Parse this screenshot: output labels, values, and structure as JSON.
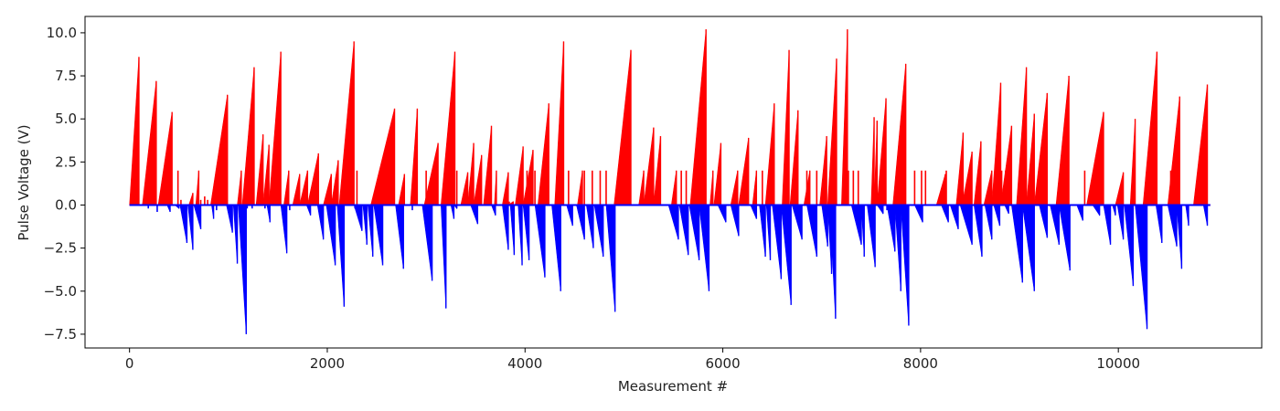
{
  "chart_data": {
    "type": "bar",
    "title": "",
    "xlabel": "Measurement #",
    "ylabel": "Pulse Voltage (V)",
    "xlim": [
      -450,
      11450
    ],
    "ylim": [
      -8.3,
      10.95
    ],
    "x_ticks": [
      0,
      2000,
      4000,
      6000,
      8000,
      10000
    ],
    "y_ticks": [
      -7.5,
      -5.0,
      -2.5,
      0.0,
      2.5,
      5.0,
      7.5,
      10.0
    ],
    "y_tick_labels": [
      "−7.5",
      "−5.0",
      "−2.5",
      "0.0",
      "2.5",
      "5.0",
      "7.5",
      "10.0"
    ],
    "x_tick_labels": [
      "0",
      "2000",
      "4000",
      "6000",
      "8000",
      "10000"
    ],
    "grid": false,
    "series": [
      {
        "color": "#ff0000",
        "sign": "positive",
        "ramps": [
          [
            0,
            95,
            8.6
          ],
          [
            130,
            270,
            7.2
          ],
          [
            290,
            430,
            5.4
          ],
          [
            600,
            640,
            0.7
          ],
          [
            670,
            700,
            2.0
          ],
          [
            820,
            990,
            6.4
          ],
          [
            1090,
            1130,
            2.0
          ],
          [
            1140,
            1260,
            8.0
          ],
          [
            1280,
            1350,
            4.1
          ],
          [
            1350,
            1410,
            3.5
          ],
          [
            1410,
            1530,
            8.9
          ],
          [
            1560,
            1610,
            2.0
          ],
          [
            1650,
            1720,
            1.8
          ],
          [
            1720,
            1800,
            2.0
          ],
          [
            1800,
            1910,
            3.0
          ],
          [
            1960,
            2040,
            1.8
          ],
          [
            2040,
            2110,
            2.6
          ],
          [
            2120,
            2270,
            9.5
          ],
          [
            2440,
            2680,
            5.6
          ],
          [
            2720,
            2780,
            1.8
          ],
          [
            2840,
            2910,
            5.6
          ],
          [
            2980,
            3120,
            3.6
          ],
          [
            3150,
            3290,
            8.9
          ],
          [
            3350,
            3420,
            1.9
          ],
          [
            3420,
            3480,
            3.6
          ],
          [
            3480,
            3560,
            2.9
          ],
          [
            3580,
            3660,
            4.6
          ],
          [
            3690,
            3710,
            2.0
          ],
          [
            3770,
            3830,
            1.9
          ],
          [
            3830,
            3880,
            0.2
          ],
          [
            3900,
            3980,
            3.4
          ],
          [
            3980,
            4080,
            3.2
          ],
          [
            4130,
            4240,
            5.9
          ],
          [
            4300,
            4390,
            9.5
          ],
          [
            4530,
            4580,
            2.0
          ],
          [
            4900,
            5070,
            9.0
          ],
          [
            5150,
            5200,
            2.0
          ],
          [
            5200,
            5300,
            4.5
          ],
          [
            5300,
            5370,
            4.0
          ],
          [
            5480,
            5530,
            2.0
          ],
          [
            5670,
            5830,
            10.2
          ],
          [
            5870,
            5900,
            2.0
          ],
          [
            5910,
            5980,
            3.6
          ],
          [
            6080,
            6150,
            2.0
          ],
          [
            6160,
            6260,
            3.9
          ],
          [
            6300,
            6340,
            2.0
          ],
          [
            6430,
            6520,
            5.9
          ],
          [
            6600,
            6670,
            9.0
          ],
          [
            6680,
            6760,
            5.5
          ],
          [
            6820,
            6880,
            2.0
          ],
          [
            6980,
            7050,
            4.0
          ],
          [
            7060,
            7150,
            8.5
          ],
          [
            7200,
            7260,
            10.2
          ],
          [
            7500,
            7530,
            5.1
          ],
          [
            7530,
            7560,
            4.9
          ],
          [
            7560,
            7650,
            6.2
          ],
          [
            7720,
            7850,
            8.2
          ],
          [
            8160,
            8250,
            1.8
          ],
          [
            8360,
            8430,
            4.2
          ],
          [
            8420,
            8520,
            3.1
          ],
          [
            8540,
            8610,
            3.7
          ],
          [
            8640,
            8720,
            2.0
          ],
          [
            8720,
            8810,
            7.1
          ],
          [
            8810,
            8920,
            4.6
          ],
          [
            8970,
            9070,
            8.0
          ],
          [
            9070,
            9150,
            5.3
          ],
          [
            9150,
            9280,
            6.5
          ],
          [
            9370,
            9500,
            7.5
          ],
          [
            9680,
            9850,
            5.4
          ],
          [
            9970,
            10050,
            1.9
          ],
          [
            10120,
            10170,
            5.0
          ],
          [
            10250,
            10390,
            8.9
          ],
          [
            10500,
            10620,
            6.3
          ],
          [
            10760,
            10900,
            7.0
          ]
        ],
        "spikes": [
          [
            490,
            2.0
          ],
          [
            520,
            0.3
          ],
          [
            720,
            0.3
          ],
          [
            760,
            0.5
          ],
          [
            790,
            0.3
          ],
          [
            1210,
            2.0
          ],
          [
            1860,
            1.0
          ],
          [
            1910,
            2.0
          ],
          [
            2300,
            2.0
          ],
          [
            2560,
            2.0
          ],
          [
            3000,
            2.0
          ],
          [
            3310,
            2.0
          ],
          [
            3840,
            0.2
          ],
          [
            4020,
            2.0
          ],
          [
            4100,
            2.0
          ],
          [
            4440,
            2.0
          ],
          [
            4600,
            2.0
          ],
          [
            4680,
            2.0
          ],
          [
            4760,
            2.0
          ],
          [
            4820,
            2.0
          ],
          [
            5580,
            2.0
          ],
          [
            5630,
            2.0
          ],
          [
            6400,
            2.0
          ],
          [
            6850,
            2.0
          ],
          [
            6950,
            2.0
          ],
          [
            7270,
            2.0
          ],
          [
            7320,
            2.0
          ],
          [
            7370,
            2.0
          ],
          [
            7940,
            2.0
          ],
          [
            8010,
            2.0
          ],
          [
            8050,
            2.0
          ],
          [
            8260,
            2.0
          ],
          [
            8820,
            2.0
          ],
          [
            8860,
            2.0
          ],
          [
            9480,
            2.0
          ],
          [
            9660,
            2.0
          ],
          [
            10530,
            2.0
          ]
        ]
      },
      {
        "color": "#0000ff",
        "sign": "negative",
        "ramps": [
          [
            380,
            410,
            -0.4
          ],
          [
            460,
            500,
            -0.2
          ],
          [
            510,
            580,
            -2.2
          ],
          [
            590,
            640,
            -2.6
          ],
          [
            650,
            720,
            -1.4
          ],
          [
            830,
            850,
            -0.8
          ],
          [
            980,
            1040,
            -1.6
          ],
          [
            1050,
            1090,
            -3.4
          ],
          [
            1100,
            1180,
            -7.5
          ],
          [
            1390,
            1420,
            -1.0
          ],
          [
            1530,
            1590,
            -2.8
          ],
          [
            1790,
            1830,
            -0.6
          ],
          [
            1900,
            1960,
            -2.0
          ],
          [
            1990,
            2080,
            -3.5
          ],
          [
            2100,
            2170,
            -5.9
          ],
          [
            2270,
            2350,
            -1.5
          ],
          [
            2360,
            2400,
            -2.3
          ],
          [
            2410,
            2460,
            -3.0
          ],
          [
            2470,
            2560,
            -3.5
          ],
          [
            2690,
            2770,
            -3.7
          ],
          [
            2960,
            3060,
            -4.4
          ],
          [
            3150,
            3200,
            -6.0
          ],
          [
            3250,
            3280,
            -0.8
          ],
          [
            3280,
            3310,
            -0.2
          ],
          [
            3450,
            3520,
            -1.1
          ],
          [
            3660,
            3700,
            -0.6
          ],
          [
            3770,
            3830,
            -2.6
          ],
          [
            3850,
            3890,
            -2.9
          ],
          [
            3930,
            3970,
            -3.5
          ],
          [
            3980,
            4040,
            -3.2
          ],
          [
            4100,
            4200,
            -4.2
          ],
          [
            4270,
            4360,
            -5.0
          ],
          [
            4420,
            4480,
            -1.2
          ],
          [
            4520,
            4600,
            -2.0
          ],
          [
            4620,
            4690,
            -2.5
          ],
          [
            4700,
            4790,
            -3.0
          ],
          [
            4820,
            4910,
            -6.2
          ],
          [
            5450,
            5550,
            -2.0
          ],
          [
            5560,
            5650,
            -2.9
          ],
          [
            5660,
            5760,
            -3.2
          ],
          [
            5760,
            5860,
            -5.0
          ],
          [
            5950,
            6030,
            -1.0
          ],
          [
            6080,
            6160,
            -1.8
          ],
          [
            6280,
            6340,
            -0.8
          ],
          [
            6370,
            6430,
            -3.0
          ],
          [
            6440,
            6480,
            -3.2
          ],
          [
            6500,
            6590,
            -4.3
          ],
          [
            6590,
            6690,
            -5.8
          ],
          [
            6700,
            6800,
            -2.0
          ],
          [
            6850,
            6950,
            -3.0
          ],
          [
            7000,
            7060,
            -2.4
          ],
          [
            7060,
            7100,
            -4.0
          ],
          [
            7080,
            7140,
            -6.6
          ],
          [
            7300,
            7400,
            -2.3
          ],
          [
            7400,
            7430,
            -3.0
          ],
          [
            7460,
            7540,
            -3.6
          ],
          [
            7560,
            7620,
            -0.5
          ],
          [
            7660,
            7740,
            -2.7
          ],
          [
            7740,
            7800,
            -5.0
          ],
          [
            7800,
            7880,
            -7.0
          ],
          [
            7940,
            8020,
            -1.0
          ],
          [
            8210,
            8280,
            -1.0
          ],
          [
            8300,
            8380,
            -1.4
          ],
          [
            8400,
            8520,
            -2.3
          ],
          [
            8540,
            8620,
            -3.0
          ],
          [
            8650,
            8720,
            -2.0
          ],
          [
            8740,
            8800,
            -1.2
          ],
          [
            8850,
            8890,
            -0.5
          ],
          [
            8920,
            9030,
            -4.5
          ],
          [
            9030,
            9150,
            -5.0
          ],
          [
            9200,
            9280,
            -1.9
          ],
          [
            9310,
            9400,
            -2.3
          ],
          [
            9400,
            9510,
            -3.8
          ],
          [
            9580,
            9640,
            -0.9
          ],
          [
            9740,
            9810,
            -0.6
          ],
          [
            9850,
            9920,
            -2.3
          ],
          [
            9940,
            9970,
            -0.6
          ],
          [
            9990,
            10050,
            -2.0
          ],
          [
            10060,
            10150,
            -4.7
          ],
          [
            10170,
            10290,
            -7.2
          ],
          [
            10380,
            10440,
            -2.2
          ],
          [
            10500,
            10590,
            -2.4
          ],
          [
            10590,
            10640,
            -3.7
          ],
          [
            10680,
            10710,
            -1.2
          ],
          [
            10860,
            10900,
            -1.2
          ]
        ],
        "spikes": [
          [
            190,
            -0.2
          ],
          [
            280,
            -0.4
          ],
          [
            880,
            -0.3
          ],
          [
            1190,
            -0.2
          ],
          [
            1240,
            -0.2
          ],
          [
            1370,
            -0.2
          ],
          [
            1620,
            -0.3
          ],
          [
            2280,
            -0.2
          ],
          [
            2860,
            -0.3
          ],
          [
            4560,
            -0.3
          ],
          [
            5850,
            -0.2
          ],
          [
            6780,
            -0.3
          ],
          [
            6880,
            -0.2
          ],
          [
            7340,
            -0.3
          ],
          [
            7660,
            -0.3
          ]
        ]
      }
    ]
  }
}
